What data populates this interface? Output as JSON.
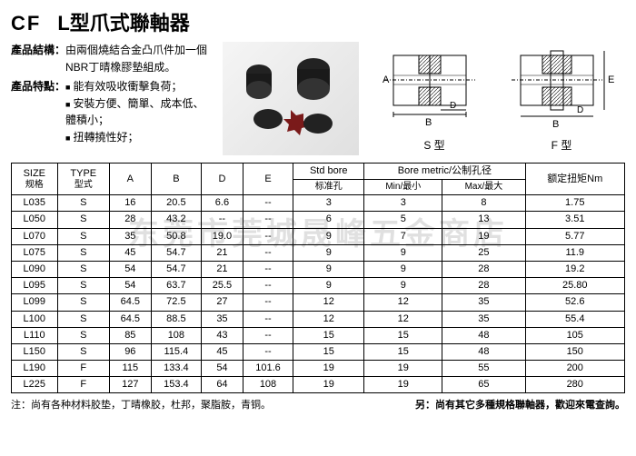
{
  "header": {
    "code": "CF",
    "title": "L型爪式聯軸器"
  },
  "desc": {
    "structure_label": "產品結構：",
    "structure_text": "由兩個燒結合金凸爪件加一個NBR丁晴橡膠墊組成。",
    "feature_label": "產品特點：",
    "features": [
      "能有效吸收衝擊負荷；",
      "安裝方便、簡單、成本低、體積小；",
      "扭轉撓性好；"
    ]
  },
  "diagrams": {
    "s_label": "S 型",
    "f_label": "F 型",
    "dim_a": "A",
    "dim_b": "B",
    "dim_d": "D",
    "dim_e": "E"
  },
  "table": {
    "headers": {
      "size": "SIZE",
      "size_sub": "规格",
      "type": "TYPE",
      "type_sub": "型式",
      "a": "A",
      "b": "B",
      "d": "D",
      "e": "E",
      "std": "Std bore",
      "std_sub": "标准孔",
      "metric": "Bore metric/公制孔径",
      "min": "Min/最小",
      "max": "Max/最大",
      "torque": "额定扭矩Nm"
    },
    "rows": [
      {
        "size": "L035",
        "type": "S",
        "a": "16",
        "b": "20.5",
        "d": "6.6",
        "e": "--",
        "std": "3",
        "min": "3",
        "max": "8",
        "nm": "1.75"
      },
      {
        "size": "L050",
        "type": "S",
        "a": "28",
        "b": "43.2",
        "d": "--",
        "e": "--",
        "std": "6",
        "min": "5",
        "max": "13",
        "nm": "3.51"
      },
      {
        "size": "L070",
        "type": "S",
        "a": "35",
        "b": "50.8",
        "d": "19.0",
        "e": "--",
        "std": "9",
        "min": "7",
        "max": "19",
        "nm": "5.77"
      },
      {
        "size": "L075",
        "type": "S",
        "a": "45",
        "b": "54.7",
        "d": "21",
        "e": "--",
        "std": "9",
        "min": "9",
        "max": "25",
        "nm": "11.9"
      },
      {
        "size": "L090",
        "type": "S",
        "a": "54",
        "b": "54.7",
        "d": "21",
        "e": "--",
        "std": "9",
        "min": "9",
        "max": "28",
        "nm": "19.2"
      },
      {
        "size": "L095",
        "type": "S",
        "a": "54",
        "b": "63.7",
        "d": "25.5",
        "e": "--",
        "std": "9",
        "min": "9",
        "max": "28",
        "nm": "25.80"
      },
      {
        "size": "L099",
        "type": "S",
        "a": "64.5",
        "b": "72.5",
        "d": "27",
        "e": "--",
        "std": "12",
        "min": "12",
        "max": "35",
        "nm": "52.6"
      },
      {
        "size": "L100",
        "type": "S",
        "a": "64.5",
        "b": "88.5",
        "d": "35",
        "e": "--",
        "std": "12",
        "min": "12",
        "max": "35",
        "nm": "55.4"
      },
      {
        "size": "L110",
        "type": "S",
        "a": "85",
        "b": "108",
        "d": "43",
        "e": "--",
        "std": "15",
        "min": "15",
        "max": "48",
        "nm": "105"
      },
      {
        "size": "L150",
        "type": "S",
        "a": "96",
        "b": "115.4",
        "d": "45",
        "e": "--",
        "std": "15",
        "min": "15",
        "max": "48",
        "nm": "150"
      },
      {
        "size": "L190",
        "type": "F",
        "a": "115",
        "b": "133.4",
        "d": "54",
        "e": "101.6",
        "std": "19",
        "min": "19",
        "max": "55",
        "nm": "200"
      },
      {
        "size": "L225",
        "type": "F",
        "a": "127",
        "b": "153.4",
        "d": "64",
        "e": "108",
        "std": "19",
        "min": "19",
        "max": "65",
        "nm": "280"
      }
    ]
  },
  "footer": {
    "left": "注：尚有各种材料胶垫，丁晴橡胶，杜邦，聚脂胺，青铜。",
    "right": "另：尚有其它多種規格聯軸器，歡迎來電查詢。"
  },
  "watermark": "东莞市莞城晟峰五金商店",
  "colors": {
    "border": "#000000",
    "bg": "#ffffff",
    "text": "#000000",
    "wm": "rgba(0,0,0,0.12)"
  }
}
